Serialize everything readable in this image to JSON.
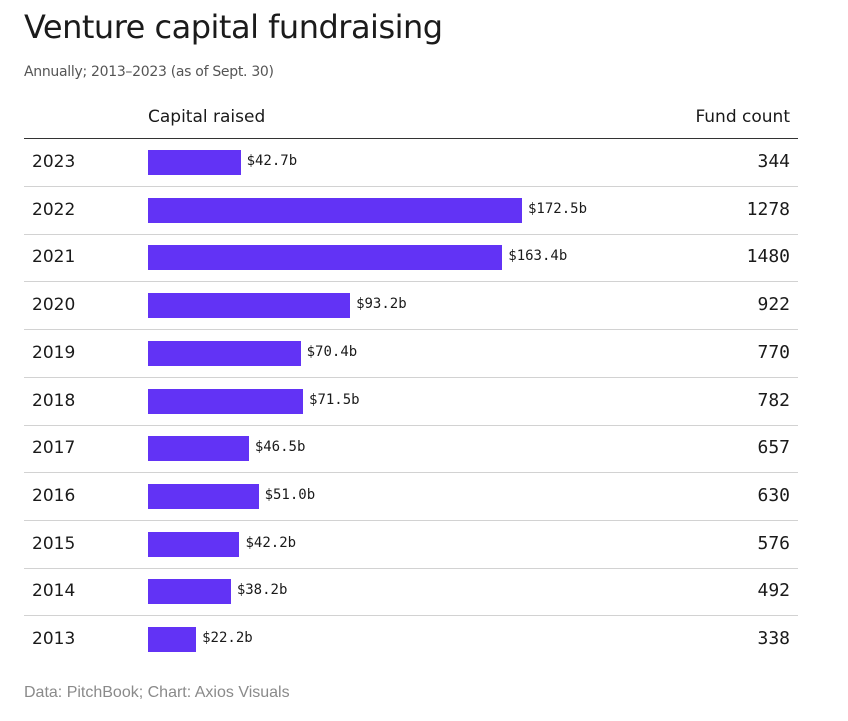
{
  "header": {
    "title": "Venture capital fundraising",
    "subtitle": "Annually; 2013–2023 (as of Sept. 30)"
  },
  "columns": {
    "capital": "Capital raised",
    "count": "Fund count"
  },
  "source": "Data: PitchBook; Chart: Axios Visuals",
  "colors": {
    "bar": "#6233f5",
    "divider": "#d2d2d2"
  },
  "chart_data": {
    "type": "bar",
    "orientation": "horizontal",
    "title": "Venture capital fundraising",
    "subtitle": "Annually; 2013–2023 (as of Sept. 30)",
    "categories": [
      "2023",
      "2022",
      "2021",
      "2020",
      "2019",
      "2018",
      "2017",
      "2016",
      "2015",
      "2014",
      "2013"
    ],
    "series": [
      {
        "name": "Capital raised",
        "values": [
          42.7,
          172.5,
          163.4,
          93.2,
          70.4,
          71.5,
          46.5,
          51.0,
          42.2,
          38.2,
          22.2
        ],
        "labels": [
          "$42.7b",
          "$172.5b",
          "$163.4b",
          "$93.2b",
          "$70.4b",
          "$71.5b",
          "$46.5b",
          "$51.0b",
          "$42.2b",
          "$38.2b",
          "$22.2b"
        ]
      },
      {
        "name": "Fund count",
        "values": [
          344,
          1278,
          1480,
          922,
          770,
          782,
          657,
          630,
          576,
          492,
          338
        ]
      }
    ],
    "grid": false,
    "legend": "none"
  }
}
